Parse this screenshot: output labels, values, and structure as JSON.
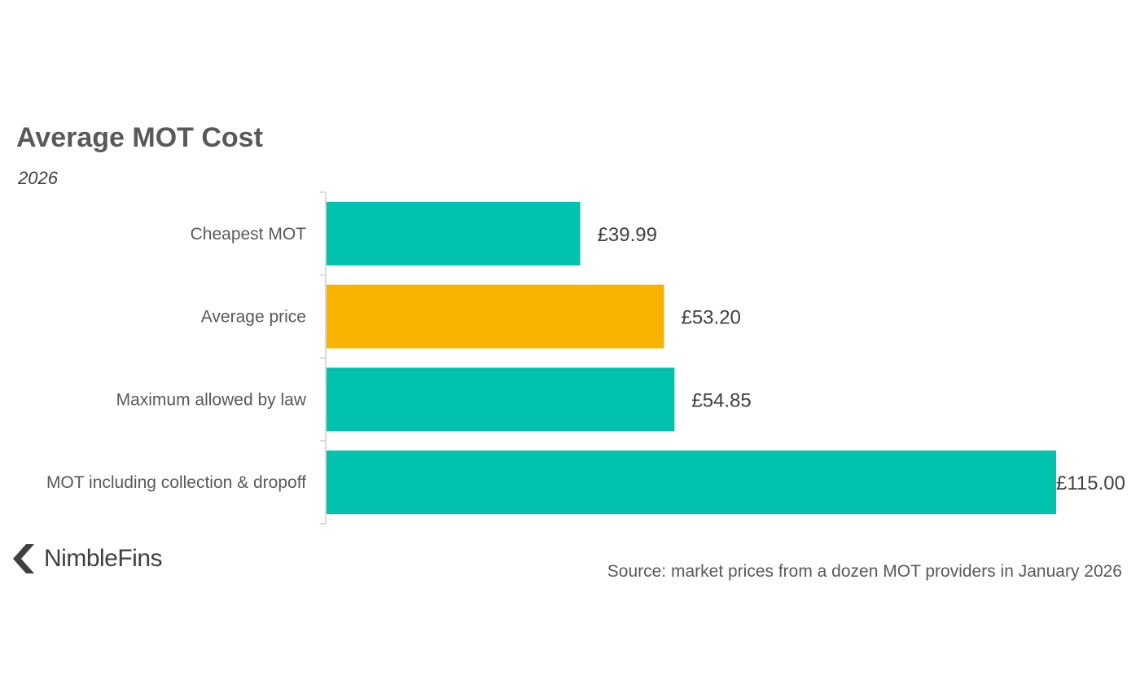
{
  "chart_data": {
    "type": "bar",
    "orientation": "horizontal",
    "title": "Average MOT Cost",
    "subtitle": "2026",
    "categories": [
      "Cheapest MOT",
      "Average price",
      "Maximum allowed by law",
      "MOT including collection & dropoff"
    ],
    "values": [
      39.99,
      53.2,
      54.85,
      115.0
    ],
    "value_labels": [
      "£39.99",
      "£53.20",
      "£54.85",
      "£115.00"
    ],
    "bar_colors": [
      "#00C2AF",
      "#F8B200",
      "#00C2AF",
      "#00C2AF"
    ],
    "xlim": [
      0,
      115
    ],
    "grid": false,
    "legend": "none"
  },
  "logo": {
    "text": "NimbleFins",
    "icon": "chevron-left-logo-icon"
  },
  "source": "Source: market prices from a dozen MOT providers in January 2026"
}
